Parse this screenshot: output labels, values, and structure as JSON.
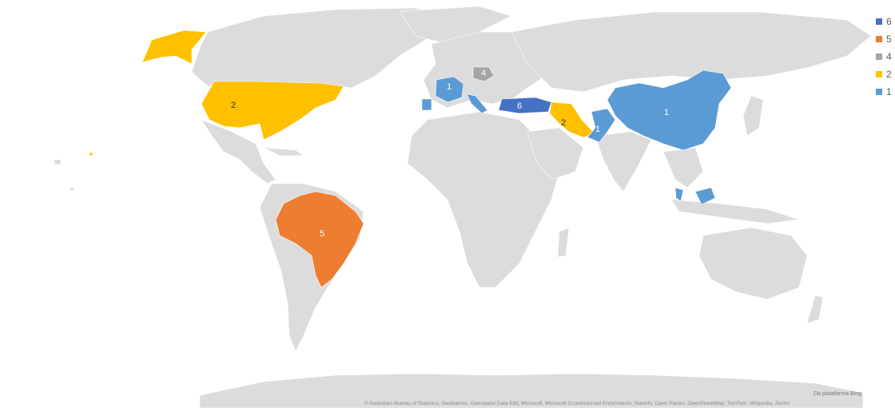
{
  "map": {
    "colors": {
      "land": "#dcdcdc",
      "six": "#4472c4",
      "five": "#ed7d31",
      "four": "#a5a5a5",
      "two": "#ffc000",
      "one": "#5b9bd5"
    },
    "legend": [
      {
        "label": "6",
        "color": "#4472c4"
      },
      {
        "label": "5",
        "color": "#ed7d31"
      },
      {
        "label": "4",
        "color": "#a5a5a5"
      },
      {
        "label": "2",
        "color": "#ffc000"
      },
      {
        "label": "1",
        "color": "#5b9bd5"
      }
    ],
    "regions": [
      {
        "name": "Turkey",
        "value": "6"
      },
      {
        "name": "Brazil",
        "value": "5"
      },
      {
        "name": "Poland",
        "value": "4"
      },
      {
        "name": "United States",
        "value": "2"
      },
      {
        "name": "Iran",
        "value": "2"
      },
      {
        "name": "China",
        "value": "1"
      },
      {
        "name": "France",
        "value": "1"
      },
      {
        "name": "Pakistan",
        "value": "1"
      }
    ],
    "credit_line1": "Da plataforma Bing",
    "credit_line2": "© Australian Bureau of Statistics, GeoNames, Geospatial Data Edit, Microsoft, Microsoft Crowdsourced Enrichments, Navinfo, Open Places, OpenStreetMap, TomTom, Wikipedia, Zenrin"
  }
}
